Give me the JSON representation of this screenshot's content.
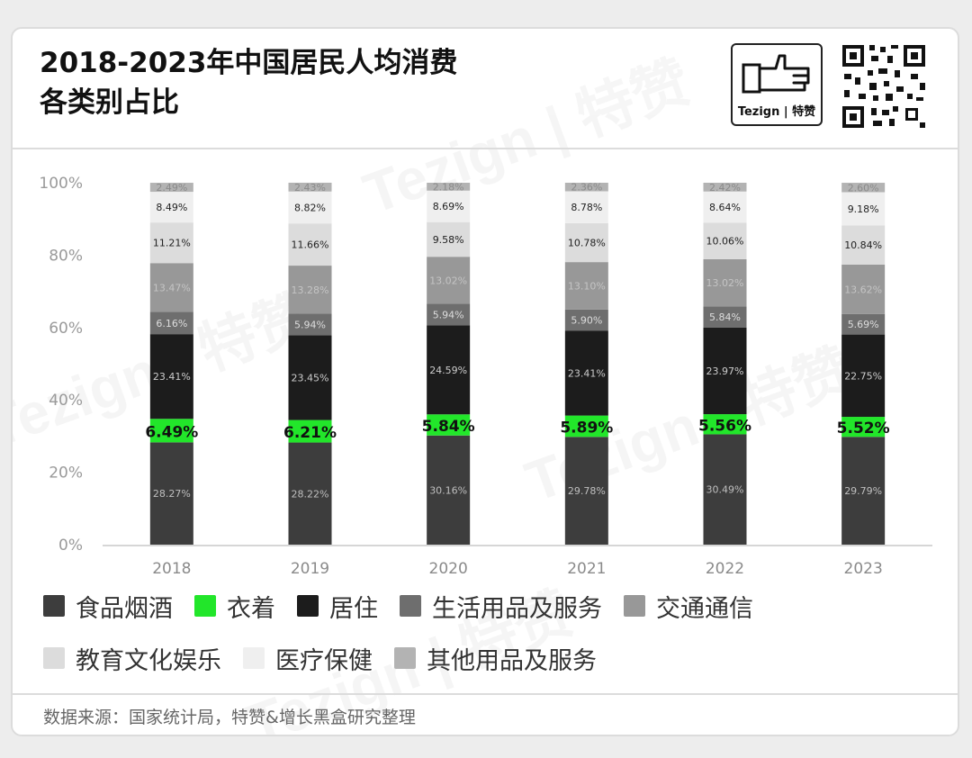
{
  "header": {
    "title": "2018-2023年中国居民人均消费\n各类别占比",
    "logo_text": "Tezign | 特赞"
  },
  "watermark_text": "Tezign | 特赞",
  "footer": {
    "source": "数据来源：国家统计局，特赞&增长黑盒研究整理"
  },
  "chart_data": {
    "type": "bar",
    "stacked": true,
    "title": "2018-2023年中国居民人均消费各类别占比",
    "xlabel": "",
    "ylabel": "",
    "ylim": [
      0,
      100
    ],
    "yticks": [
      "0%",
      "20%",
      "40%",
      "60%",
      "80%",
      "100%"
    ],
    "categories": [
      "2018",
      "2019",
      "2020",
      "2021",
      "2022",
      "2023"
    ],
    "legend_position": "bottom",
    "grid": false,
    "series": [
      {
        "name": "食品烟酒",
        "color": "#3d3d3d",
        "label_color": "#bfbfbf",
        "values": [
          28.27,
          28.22,
          30.16,
          29.78,
          30.49,
          29.79
        ],
        "labels": [
          "28.27%",
          "28.22%",
          "30.16%",
          "29.78%",
          "30.49%",
          "29.79%"
        ]
      },
      {
        "name": "衣着",
        "color": "#22e62a",
        "label_color": "#111111",
        "highlight": true,
        "values": [
          6.49,
          6.21,
          5.84,
          5.89,
          5.56,
          5.52
        ],
        "labels": [
          "6.49%",
          "6.21%",
          "5.84%",
          "5.89%",
          "5.56%",
          "5.52%"
        ]
      },
      {
        "name": "居住",
        "color": "#1c1c1c",
        "label_color": "#cccccc",
        "values": [
          23.41,
          23.45,
          24.59,
          23.41,
          23.97,
          22.75
        ],
        "labels": [
          "23.41%",
          "23.45%",
          "24.59%",
          "23.41%",
          "23.97%",
          "22.75%"
        ]
      },
      {
        "name": "生活用品及服务",
        "color": "#6e6e6e",
        "label_color": "#dddddd",
        "values": [
          6.16,
          5.94,
          5.94,
          5.9,
          5.84,
          5.69
        ],
        "labels": [
          "6.16%",
          "5.94%",
          "5.94%",
          "5.90%",
          "5.84%",
          "5.69%"
        ]
      },
      {
        "name": "交通通信",
        "color": "#989898",
        "label_color": "#c4c4c4",
        "values": [
          13.47,
          13.28,
          13.02,
          13.1,
          13.02,
          13.62
        ],
        "labels": [
          "13.47%",
          "13.28%",
          "13.02%",
          "13.10%",
          "13.02%",
          "13.62%"
        ]
      },
      {
        "name": "教育文化娱乐",
        "color": "#dcdcdc",
        "label_color": "#222222",
        "values": [
          11.21,
          11.66,
          9.58,
          10.78,
          10.06,
          10.84
        ],
        "labels": [
          "11.21%",
          "11.66%",
          "9.58%",
          "10.78%",
          "10.06%",
          "10.84%"
        ]
      },
      {
        "name": "医疗保健",
        "color": "#efefef",
        "label_color": "#222222",
        "values": [
          8.49,
          8.82,
          8.69,
          8.78,
          8.64,
          9.18
        ],
        "labels": [
          "8.49%",
          "8.82%",
          "8.69%",
          "8.78%",
          "8.64%",
          "9.18%"
        ]
      },
      {
        "name": "其他用品及服务",
        "color": "#b3b3b3",
        "label_color": "#8a8a8a",
        "values": [
          2.49,
          2.43,
          2.18,
          2.36,
          2.42,
          2.6
        ],
        "labels": [
          "2.49%",
          "2.43%",
          "2.18%",
          "2.36%",
          "2.42%",
          "2.60%"
        ]
      }
    ]
  }
}
